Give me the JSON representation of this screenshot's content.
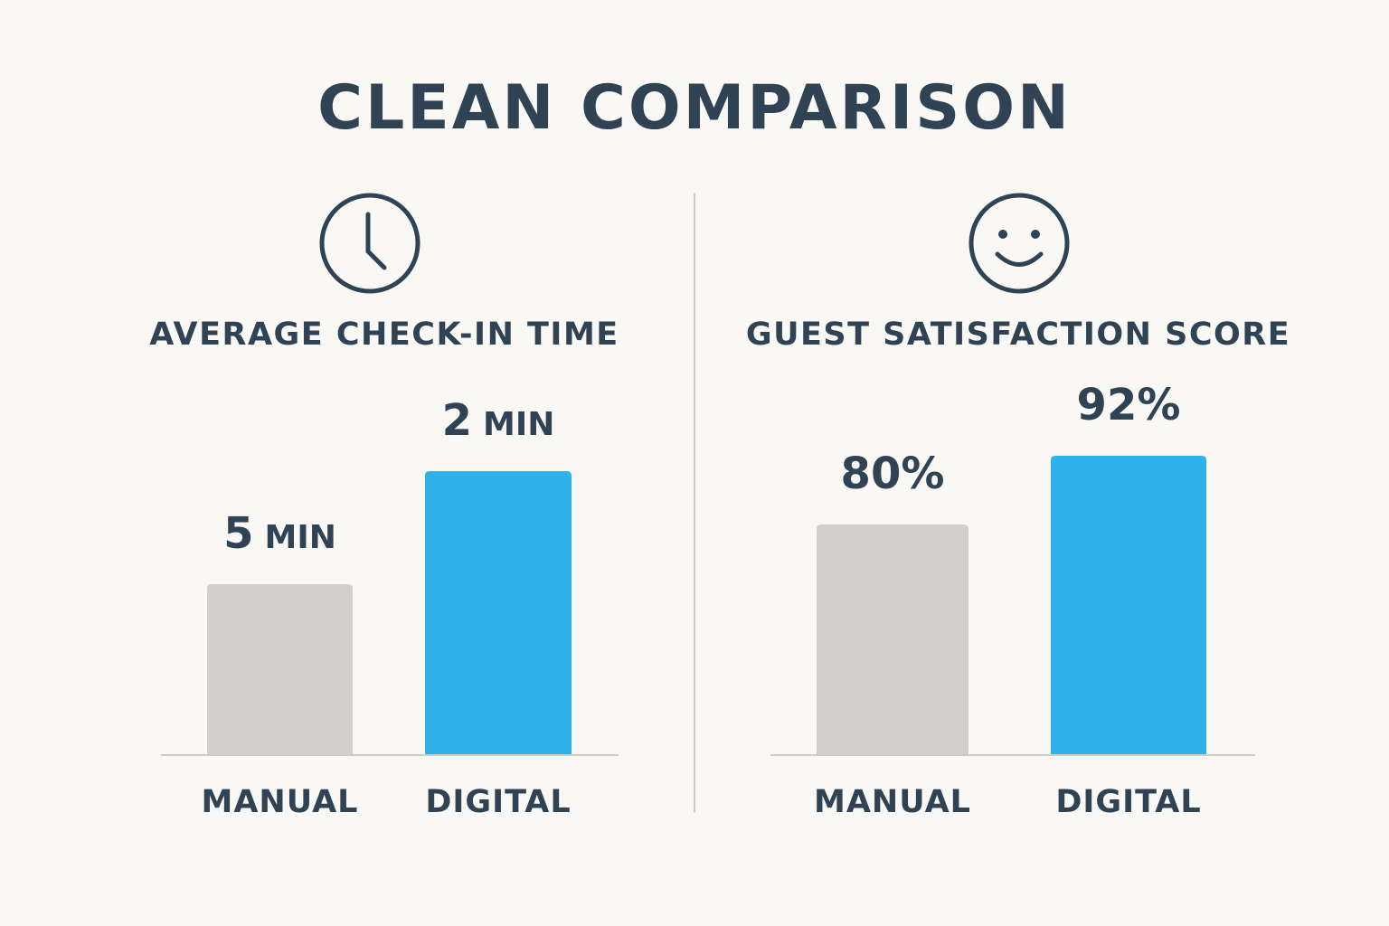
{
  "title": "CLEAN COMPARISON",
  "colors": {
    "text": "#2f4355",
    "manual": "#d3d0cb",
    "digital": "#2fb1ea",
    "axis": "#cfcbc5",
    "background": "#faf8f4"
  },
  "icons": {
    "left": "clock-icon",
    "right": "smiley-face-icon"
  },
  "chart_data": [
    {
      "type": "bar",
      "title": "AVERAGE CHECK-IN TIME",
      "categories": [
        "MANUAL",
        "DIGITAL"
      ],
      "values": [
        5,
        2
      ],
      "value_labels": [
        {
          "number": "5",
          "unit": "MIN"
        },
        {
          "number": "2",
          "unit": "MIN"
        }
      ],
      "note": "bar heights as drawn in the original (digital bar drawn taller)",
      "bar_levels": [
        0.6,
        1.0
      ]
    },
    {
      "type": "bar",
      "title": "GUEST SATISFACTION SCORE",
      "categories": [
        "MANUAL",
        "DIGITAL"
      ],
      "values": [
        80,
        92
      ],
      "value_labels": [
        {
          "number": "80%",
          "unit": ""
        },
        {
          "number": "92%",
          "unit": ""
        }
      ],
      "ylim": [
        0,
        100
      ]
    }
  ]
}
